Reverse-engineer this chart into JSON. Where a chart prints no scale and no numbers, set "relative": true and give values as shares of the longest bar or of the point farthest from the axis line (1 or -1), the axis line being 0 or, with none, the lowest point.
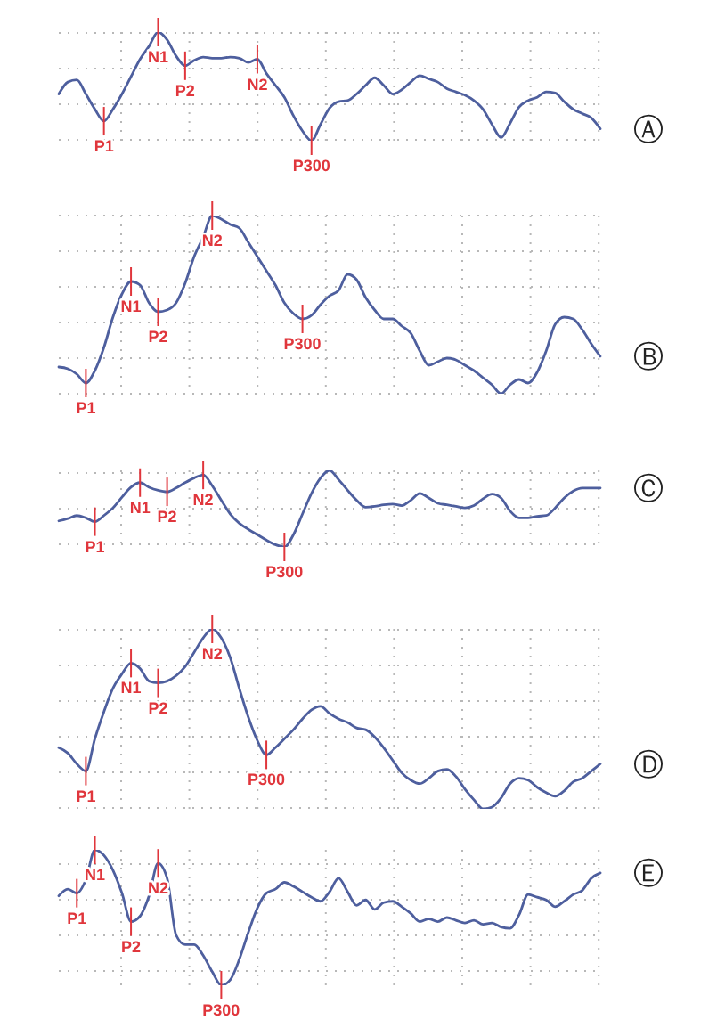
{
  "chart_data": [
    {
      "type": "line",
      "categories": [
        null,
        null,
        null,
        null,
        null,
        null,
        null,
        null,
        null,
        null,
        null,
        null,
        null,
        null,
        null,
        null,
        null,
        null,
        null,
        null,
        null,
        null,
        null,
        null,
        null,
        null,
        null,
        null,
        null,
        null,
        null,
        null,
        null,
        null,
        null,
        null,
        null,
        null,
        null,
        null,
        null,
        null,
        null,
        null,
        null,
        null,
        null,
        null,
        null,
        null,
        null,
        null,
        null,
        null,
        null,
        null,
        null,
        null,
        null,
        null,
        null
      ],
      "series": [
        {
          "color": "#4e5f9e",
          "values": [
            0.43,
            0.54,
            0.56,
            0.43,
            0.29,
            0.18,
            0.29,
            0.43,
            0.59,
            0.75,
            0.87,
            1,
            0.93,
            0.78,
            0.69,
            0.74,
            0.77,
            0.76,
            0.76,
            0.77,
            0.76,
            0.72,
            0.75,
            0.62,
            0.51,
            0.4,
            0.23,
            0.09,
            0,
            0.15,
            0.3,
            0.36,
            0.37,
            0.43,
            0.51,
            0.58,
            0.51,
            0.43,
            0.47,
            0.54,
            0.6,
            0.57,
            0.54,
            0.48,
            0.45,
            0.42,
            0.37,
            0.29,
            0.15,
            0.03,
            0.16,
            0.31,
            0.37,
            0.4,
            0.45,
            0.44,
            0.36,
            0.29,
            0.25,
            0.21,
            0.11
          ]
        }
      ],
      "relative": true,
      "grid": true,
      "tick_labels": false,
      "annotations": [
        "Ⓐ",
        {
          "text": "P1",
          "y": 0.18
        },
        {
          "text": "N1",
          "y": 1
        },
        {
          "text": "P2",
          "y": 0.69
        },
        {
          "text": "N2",
          "y": 0.75
        },
        {
          "text": "P300",
          "y": 0
        }
      ]
    },
    {
      "type": "line",
      "categories": [
        null,
        null,
        null,
        null,
        null,
        null,
        null,
        null,
        null,
        null,
        null,
        null,
        null,
        null,
        null,
        null,
        null,
        null,
        null,
        null,
        null,
        null,
        null,
        null,
        null,
        null,
        null,
        null,
        null,
        null,
        null,
        null,
        null,
        null,
        null,
        null,
        null,
        null,
        null,
        null,
        null,
        null,
        null,
        null,
        null,
        null,
        null,
        null,
        null,
        null,
        null,
        null,
        null,
        null,
        null,
        null,
        null,
        null,
        null,
        null,
        null
      ],
      "series": [
        {
          "color": "#4e5f9e",
          "values": [
            0.15,
            0.14,
            0.11,
            0.06,
            0.13,
            0.26,
            0.43,
            0.56,
            0.63,
            0.61,
            0.51,
            0.46,
            0.47,
            0.51,
            0.62,
            0.77,
            0.88,
            1,
            0.98,
            0.95,
            0.93,
            0.85,
            0.77,
            0.69,
            0.61,
            0.51,
            0.45,
            0.42,
            0.44,
            0.5,
            0.55,
            0.58,
            0.67,
            0.64,
            0.54,
            0.47,
            0.42,
            0.42,
            0.38,
            0.34,
            0.24,
            0.16,
            0.18,
            0.2,
            0.19,
            0.16,
            0.13,
            0.09,
            0.05,
            0,
            0.05,
            0.08,
            0.06,
            0.12,
            0.24,
            0.39,
            0.43,
            0.42,
            0.36,
            0.28,
            0.21
          ]
        }
      ],
      "relative": true,
      "grid": true,
      "tick_labels": false,
      "annotations": [
        "Ⓑ",
        {
          "text": "P1",
          "y": 0.06
        },
        {
          "text": "N1",
          "y": 0.63
        },
        {
          "text": "P2",
          "y": 0.46
        },
        {
          "text": "N2",
          "y": 1
        },
        {
          "text": "P300",
          "y": 0.42
        }
      ]
    },
    {
      "type": "line",
      "categories": [
        null,
        null,
        null,
        null,
        null,
        null,
        null,
        null,
        null,
        null,
        null,
        null,
        null,
        null,
        null,
        null,
        null,
        null,
        null,
        null,
        null,
        null,
        null,
        null,
        null,
        null,
        null,
        null,
        null,
        null,
        null,
        null,
        null,
        null,
        null,
        null,
        null,
        null,
        null,
        null,
        null,
        null,
        null,
        null,
        null,
        null,
        null,
        null,
        null,
        null,
        null,
        null,
        null,
        null,
        null,
        null,
        null,
        null,
        null,
        null,
        null
      ],
      "series": [
        {
          "color": "#4e5f9e",
          "values": [
            0.34,
            0.37,
            0.41,
            0.38,
            0.33,
            0.41,
            0.51,
            0.65,
            0.78,
            0.84,
            0.78,
            0.74,
            0.72,
            0.77,
            0.84,
            0.9,
            0.94,
            0.8,
            0.61,
            0.43,
            0.31,
            0.23,
            0.16,
            0.09,
            0.03,
            0,
            0.16,
            0.43,
            0.7,
            0.9,
            1,
            0.88,
            0.74,
            0.61,
            0.52,
            0.53,
            0.55,
            0.56,
            0.54,
            0.61,
            0.7,
            0.64,
            0.57,
            0.55,
            0.53,
            0.51,
            0.54,
            0.63,
            0.69,
            0.64,
            0.47,
            0.38,
            0.38,
            0.4,
            0.41,
            0.51,
            0.64,
            0.73,
            0.77,
            0.77,
            0.77
          ]
        }
      ],
      "relative": true,
      "grid": true,
      "tick_labels": false,
      "annotations": [
        "Ⓒ",
        {
          "text": "P1",
          "y": 0.33
        },
        {
          "text": "N1",
          "y": 0.84
        },
        {
          "text": "P2",
          "y": 0.72
        },
        {
          "text": "N2",
          "y": 0.94
        },
        {
          "text": "P300",
          "y": 0
        }
      ]
    },
    {
      "type": "line",
      "categories": [
        null,
        null,
        null,
        null,
        null,
        null,
        null,
        null,
        null,
        null,
        null,
        null,
        null,
        null,
        null,
        null,
        null,
        null,
        null,
        null,
        null,
        null,
        null,
        null,
        null,
        null,
        null,
        null,
        null,
        null,
        null,
        null,
        null,
        null,
        null,
        null,
        null,
        null,
        null,
        null,
        null,
        null,
        null,
        null,
        null,
        null,
        null,
        null,
        null,
        null,
        null,
        null,
        null,
        null,
        null,
        null,
        null,
        null,
        null,
        null,
        null
      ],
      "series": [
        {
          "color": "#4e5f9e",
          "values": [
            0.34,
            0.31,
            0.25,
            0.21,
            0.39,
            0.54,
            0.67,
            0.75,
            0.81,
            0.78,
            0.71,
            0.7,
            0.71,
            0.74,
            0.79,
            0.87,
            0.95,
            1,
            0.95,
            0.84,
            0.67,
            0.51,
            0.38,
            0.3,
            0.34,
            0.39,
            0.44,
            0.5,
            0.55,
            0.57,
            0.53,
            0.5,
            0.48,
            0.45,
            0.44,
            0.4,
            0.34,
            0.27,
            0.2,
            0.16,
            0.14,
            0.17,
            0.21,
            0.22,
            0.18,
            0.11,
            0.05,
            0,
            0.01,
            0.06,
            0.14,
            0.17,
            0.16,
            0.12,
            0.09,
            0.07,
            0.1,
            0.15,
            0.17,
            0.21,
            0.25
          ]
        }
      ],
      "relative": true,
      "grid": true,
      "tick_labels": false,
      "annotations": [
        "Ⓓ",
        {
          "text": "P1",
          "y": 0.21
        },
        {
          "text": "N1",
          "y": 0.81
        },
        {
          "text": "P2",
          "y": 0.7
        },
        {
          "text": "N2",
          "y": 1
        },
        {
          "text": "P300",
          "y": 0.3
        }
      ]
    },
    {
      "type": "line",
      "categories": [
        null,
        null,
        null,
        null,
        null,
        null,
        null,
        null,
        null,
        null,
        null,
        null,
        null,
        null,
        null,
        null,
        null,
        null,
        null,
        null,
        null,
        null,
        null,
        null,
        null,
        null,
        null,
        null,
        null,
        null,
        null,
        null,
        null,
        null,
        null,
        null,
        null,
        null,
        null,
        null,
        null,
        null,
        null,
        null,
        null,
        null,
        null,
        null,
        null,
        null,
        null,
        null,
        null,
        null,
        null,
        null,
        null,
        null,
        null,
        null,
        null
      ],
      "series": [
        {
          "color": "#4e5f9e",
          "values": [
            0.66,
            0.71,
            0.68,
            0.78,
            1,
            0.96,
            0.85,
            0.68,
            0.47,
            0.51,
            0.66,
            0.9,
            0.79,
            0.37,
            0.3,
            0.3,
            0.22,
            0.1,
            0,
            0.04,
            0.19,
            0.39,
            0.57,
            0.68,
            0.71,
            0.76,
            0.73,
            0.69,
            0.65,
            0.62,
            0.69,
            0.79,
            0.69,
            0.59,
            0.63,
            0.56,
            0.61,
            0.62,
            0.58,
            0.53,
            0.47,
            0.49,
            0.47,
            0.5,
            0.48,
            0.46,
            0.48,
            0.45,
            0.46,
            0.43,
            0.42,
            0.52,
            0.67,
            0.65,
            0.63,
            0.58,
            0.62,
            0.67,
            0.7,
            0.79,
            0.83
          ]
        }
      ],
      "relative": true,
      "grid": true,
      "tick_labels": false,
      "annotations": [
        "Ⓔ",
        {
          "text": "P1",
          "y": 0.68
        },
        {
          "text": "N1",
          "y": 1
        },
        {
          "text": "P2",
          "y": 0.47
        },
        {
          "text": "N2",
          "y": 0.9
        },
        {
          "text": "P300",
          "y": 0
        }
      ]
    }
  ]
}
